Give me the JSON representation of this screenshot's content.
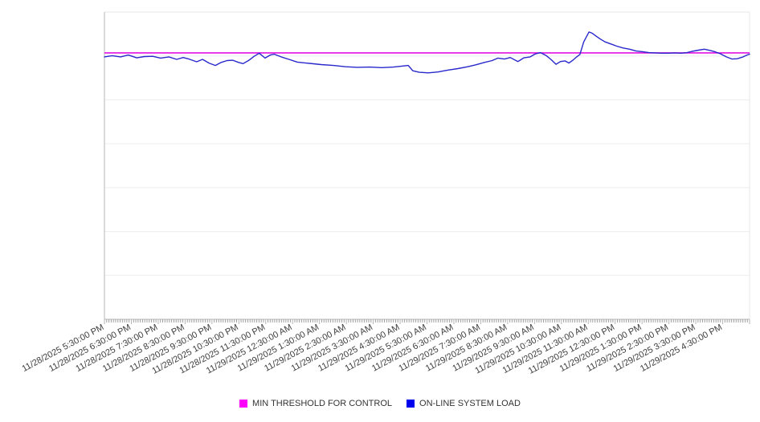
{
  "chart_data": {
    "type": "line",
    "title": "",
    "x_axis": {
      "start": "11/28/2025 5:30:00 PM",
      "end": "11/29/2025 5:30:00 PM",
      "tick_labels": [
        "11/28/2025 5:30:00 PM",
        "11/28/2025 6:30:00 PM",
        "11/28/2025 7:30:00 PM",
        "11/28/2025 8:30:00 PM",
        "11/28/2025 9:30:00 PM",
        "11/28/2025 10:30:00 PM",
        "11/28/2025 11:30:00 PM",
        "11/29/2025 12:30:00 AM",
        "11/29/2025 1:30:00 AM",
        "11/29/2025 2:30:00 AM",
        "11/29/2025 3:30:00 AM",
        "11/29/2025 4:30:00 AM",
        "11/29/2025 5:30:00 AM",
        "11/29/2025 6:30:00 AM",
        "11/29/2025 7:30:00 AM",
        "11/29/2025 8:30:00 AM",
        "11/29/2025 9:30:00 AM",
        "11/29/2025 10:30:00 AM",
        "11/29/2025 11:30:00 AM",
        "11/29/2025 12:30:00 PM",
        "11/29/2025 1:30:00 PM",
        "11/29/2025 2:30:00 PM",
        "11/29/2025 3:30:00 PM",
        "11/29/2025 4:30:00 PM"
      ],
      "minor_ticks_per_hour": 12,
      "label_rotation_deg": -28
    },
    "y_axis": {
      "labels_visible": false,
      "ylim": [
        0,
        100
      ],
      "gridline_divisions": 7,
      "grid": true
    },
    "legend_position": "bottom",
    "series": [
      {
        "name": "MIN THRESHOLD FOR CONTROL",
        "type": "threshold",
        "legend_color": "#ff00ff",
        "line_color": "#e211e2",
        "value": 86.7
      },
      {
        "name": "ON-LINE SYSTEM LOAD",
        "type": "line",
        "legend_color": "#0000ee",
        "line_color": "#2828cc",
        "points": [
          [
            0.0,
            85.4
          ],
          [
            0.012,
            85.8
          ],
          [
            0.025,
            85.4
          ],
          [
            0.037,
            86.0
          ],
          [
            0.05,
            85.1
          ],
          [
            0.062,
            85.5
          ],
          [
            0.075,
            85.6
          ],
          [
            0.087,
            85.0
          ],
          [
            0.1,
            85.4
          ],
          [
            0.112,
            84.6
          ],
          [
            0.122,
            85.2
          ],
          [
            0.131,
            84.7
          ],
          [
            0.143,
            83.8
          ],
          [
            0.152,
            84.6
          ],
          [
            0.162,
            83.4
          ],
          [
            0.172,
            82.6
          ],
          [
            0.181,
            83.6
          ],
          [
            0.19,
            84.2
          ],
          [
            0.199,
            84.3
          ],
          [
            0.208,
            83.6
          ],
          [
            0.215,
            83.2
          ],
          [
            0.224,
            84.3
          ],
          [
            0.232,
            85.6
          ],
          [
            0.24,
            86.6
          ],
          [
            0.249,
            85.0
          ],
          [
            0.257,
            86.0
          ],
          [
            0.263,
            86.3
          ],
          [
            0.274,
            85.4
          ],
          [
            0.286,
            84.6
          ],
          [
            0.299,
            83.7
          ],
          [
            0.318,
            83.3
          ],
          [
            0.336,
            82.9
          ],
          [
            0.355,
            82.6
          ],
          [
            0.374,
            82.2
          ],
          [
            0.392,
            82.0
          ],
          [
            0.411,
            82.1
          ],
          [
            0.43,
            81.9
          ],
          [
            0.448,
            82.1
          ],
          [
            0.461,
            82.4
          ],
          [
            0.471,
            82.6
          ],
          [
            0.478,
            80.9
          ],
          [
            0.488,
            80.4
          ],
          [
            0.502,
            80.2
          ],
          [
            0.517,
            80.5
          ],
          [
            0.532,
            81.1
          ],
          [
            0.548,
            81.6
          ],
          [
            0.563,
            82.2
          ],
          [
            0.575,
            82.8
          ],
          [
            0.589,
            83.6
          ],
          [
            0.601,
            84.2
          ],
          [
            0.61,
            85.0
          ],
          [
            0.62,
            84.7
          ],
          [
            0.629,
            85.2
          ],
          [
            0.641,
            83.9
          ],
          [
            0.65,
            85.1
          ],
          [
            0.66,
            85.4
          ],
          [
            0.667,
            86.3
          ],
          [
            0.676,
            86.8
          ],
          [
            0.685,
            85.8
          ],
          [
            0.692,
            84.6
          ],
          [
            0.7,
            83.0
          ],
          [
            0.707,
            83.9
          ],
          [
            0.714,
            84.1
          ],
          [
            0.72,
            83.4
          ],
          [
            0.726,
            84.3
          ],
          [
            0.732,
            85.4
          ],
          [
            0.737,
            86.2
          ],
          [
            0.743,
            90.3
          ],
          [
            0.751,
            93.5
          ],
          [
            0.756,
            93.1
          ],
          [
            0.762,
            92.2
          ],
          [
            0.768,
            91.3
          ],
          [
            0.776,
            90.3
          ],
          [
            0.785,
            89.6
          ],
          [
            0.794,
            88.9
          ],
          [
            0.804,
            88.3
          ],
          [
            0.814,
            87.9
          ],
          [
            0.824,
            87.3
          ],
          [
            0.834,
            87.1
          ],
          [
            0.844,
            86.8
          ],
          [
            0.854,
            86.7
          ],
          [
            0.864,
            86.6
          ],
          [
            0.874,
            86.6
          ],
          [
            0.884,
            86.7
          ],
          [
            0.894,
            86.6
          ],
          [
            0.903,
            86.8
          ],
          [
            0.911,
            87.2
          ],
          [
            0.921,
            87.6
          ],
          [
            0.93,
            87.9
          ],
          [
            0.939,
            87.5
          ],
          [
            0.946,
            87.1
          ],
          [
            0.955,
            86.4
          ],
          [
            0.964,
            85.4
          ],
          [
            0.973,
            84.7
          ],
          [
            0.981,
            84.8
          ],
          [
            0.99,
            85.4
          ],
          [
            0.996,
            86.0
          ],
          [
            1.0,
            86.3
          ]
        ]
      }
    ],
    "colors": {
      "grid": "#ededed",
      "border_light": "#e7e7e7",
      "axis": "#b5b5b5",
      "tick": "#a0a0a0",
      "tick_label": "#3d3d3d"
    }
  }
}
